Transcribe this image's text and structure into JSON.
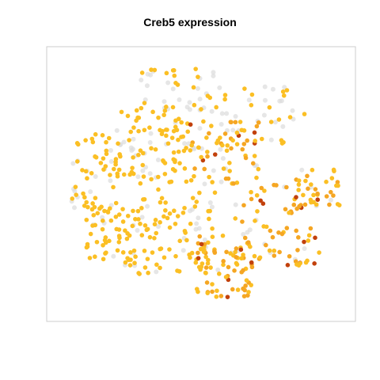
{
  "chart_data": {
    "type": "scatter",
    "title": "Creb5 expression",
    "xlabel": "",
    "ylabel": "",
    "axes_visible": false,
    "grid": false,
    "legend": "none",
    "colors": {
      "background": "#ffffff",
      "frame": "#cccccc",
      "not_expressed": "#dcdcdc",
      "low": "#fbbf24",
      "mid": "#f5a623",
      "high": "#c2410c"
    },
    "xlim": [
      0,
      100
    ],
    "ylim": [
      0,
      100
    ],
    "clusters": [
      {
        "name": "",
        "x": [
          20,
          45
        ],
        "y": [
          50,
          80
        ],
        "count": 90,
        "frac_expressed": 0.8,
        "level": "low"
      },
      {
        "name": "",
        "x": [
          5,
          22
        ],
        "y": [
          40,
          72
        ],
        "count": 60,
        "frac_expressed": 0.7,
        "level": "low"
      },
      {
        "name": "",
        "x": [
          10,
          28
        ],
        "y": [
          18,
          42
        ],
        "count": 70,
        "frac_expressed": 0.85,
        "level": "low"
      },
      {
        "name": "",
        "x": [
          28,
          55
        ],
        "y": [
          15,
          48
        ],
        "count": 85,
        "frac_expressed": 0.85,
        "level": "low"
      },
      {
        "name": "",
        "x": [
          45,
          70
        ],
        "y": [
          50,
          75
        ],
        "count": 70,
        "frac_expressed": 0.85,
        "level": "mid"
      },
      {
        "name": "",
        "x": [
          60,
          90
        ],
        "y": [
          18,
          50
        ],
        "count": 85,
        "frac_expressed": 0.85,
        "level": "mid"
      },
      {
        "name": "",
        "x": [
          48,
          68
        ],
        "y": [
          6,
          30
        ],
        "count": 75,
        "frac_expressed": 0.95,
        "level": "mid"
      },
      {
        "name": "",
        "x": [
          55,
          85
        ],
        "y": [
          65,
          88
        ],
        "count": 45,
        "frac_expressed": 0.6,
        "level": "low"
      },
      {
        "name": "",
        "x": [
          28,
          55
        ],
        "y": [
          78,
          95
        ],
        "count": 45,
        "frac_expressed": 0.5,
        "level": "low"
      },
      {
        "name": "",
        "x": [
          82,
          97
        ],
        "y": [
          40,
          56
        ],
        "count": 30,
        "frac_expressed": 0.85,
        "level": "mid"
      }
    ]
  }
}
